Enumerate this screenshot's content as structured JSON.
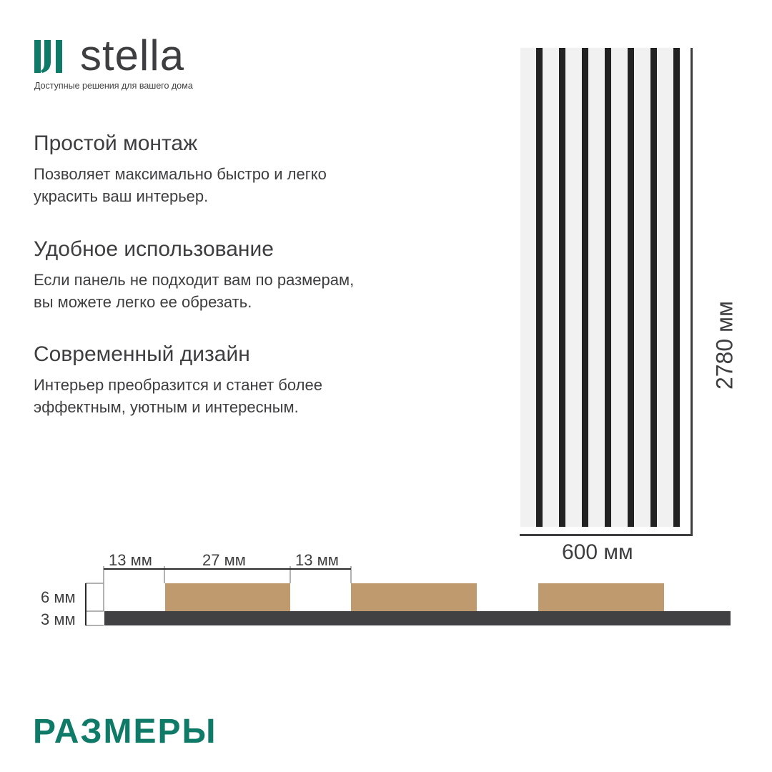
{
  "brand": {
    "name": "stella",
    "tagline": "Доступные решения для вашего дома",
    "color": "#0f7a67"
  },
  "features": [
    {
      "title": "Простой монтаж",
      "text": "Позволяет максимально быстро и легко\nукрасить ваш интерьер."
    },
    {
      "title": "Удобное использование",
      "text": "Если панель не подходит вам по размерам,\nвы можете легко ее обрезать."
    },
    {
      "title": "Современный дизайн",
      "text": "Интерьер преобразится и станет более\nэффектным, уютным и интересным."
    }
  ],
  "panel": {
    "height_label": "2780 мм",
    "width_label": "600 мм",
    "stripe_count": 7,
    "stripe_color": "#222222",
    "background_color": "#f1f1f1"
  },
  "profile": {
    "gap_label": "13 мм",
    "slat_label": "27 мм",
    "gap2_label": "13 мм",
    "slat_height_label": "6 мм",
    "base_height_label": "3 мм",
    "slat_color": "#be9a6e",
    "base_color": "#414042"
  },
  "section_title": "РАЗМЕРЫ"
}
